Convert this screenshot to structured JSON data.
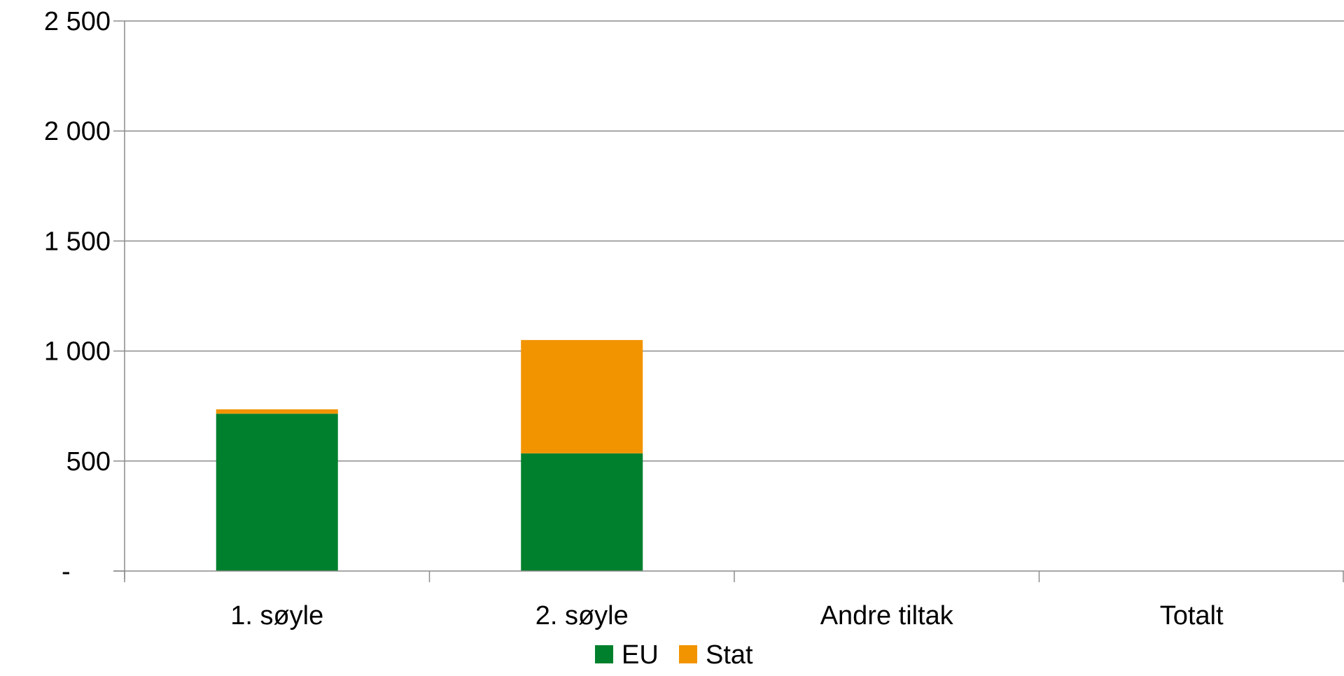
{
  "chart_data": {
    "type": "bar",
    "stacked": true,
    "categories": [
      "1. søyle",
      "2. søyle",
      "Andre tiltak",
      "Totalt"
    ],
    "series": [
      {
        "name": "EU",
        "color": "#00802d",
        "values": [
          715,
          535,
          0,
          0
        ]
      },
      {
        "name": "Stat",
        "color": "#f29400",
        "values": [
          20,
          515,
          0,
          0
        ]
      }
    ],
    "ylim": [
      0,
      2500
    ],
    "yticks": [
      0,
      500,
      1000,
      1500,
      2000,
      2500
    ],
    "ytick_labels": [
      "-",
      "500",
      "1 000",
      "1 500",
      "2 000",
      "2 500"
    ],
    "grid": true,
    "legend_position": "bottom",
    "title": "",
    "xlabel": "",
    "ylabel": ""
  }
}
